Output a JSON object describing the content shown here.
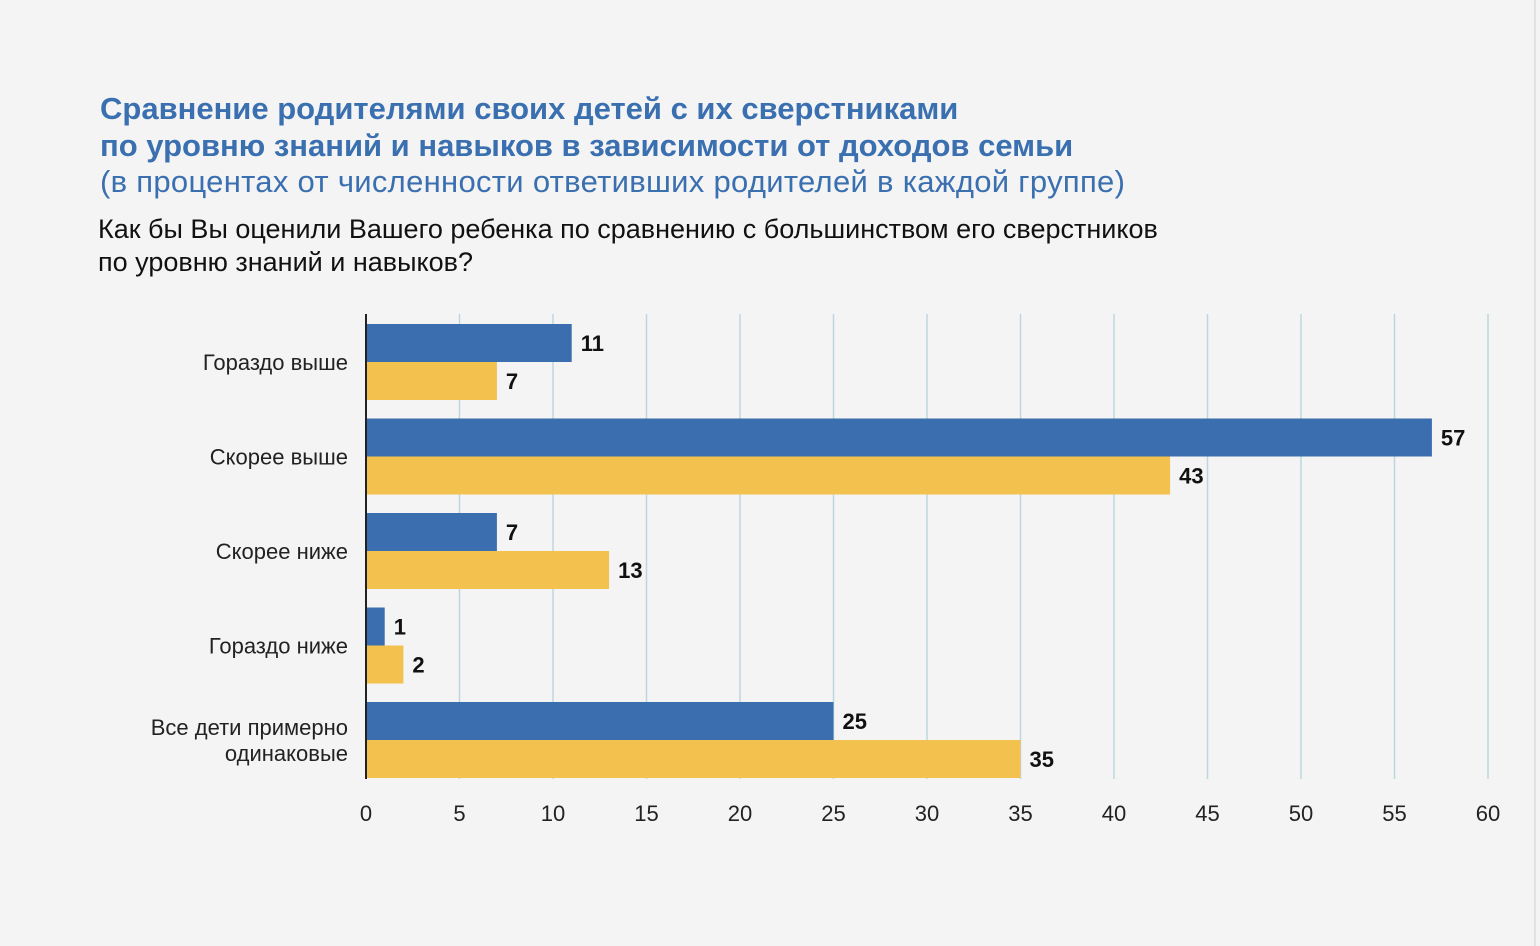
{
  "title_line1": "Сравнение родителями своих детей с их сверстниками",
  "title_line2": "по уровню знаний и навыков в зависимости от доходов семьи",
  "subtitle": "(в процентах от численности ответивших родителей в каждой группе)",
  "question_line1": "Как бы Вы оценили Вашего ребенка по сравнению с большинством его сверстников",
  "question_line2": "по уровню знаний и навыков?",
  "colors": {
    "background": "#f4f4f4",
    "title": "#3a6fb0",
    "series1": "#3b6eae",
    "series2": "#f2c14e",
    "grid": "#bcd6df"
  },
  "chart_data": {
    "type": "bar",
    "orientation": "horizontal",
    "categories": [
      [
        "Гораздо выше"
      ],
      [
        "Скорее выше"
      ],
      [
        "Скорее ниже"
      ],
      [
        "Гораздо ниже"
      ],
      [
        "Все дети примерно",
        "одинаковые"
      ]
    ],
    "series": [
      {
        "values": [
          11,
          57,
          7,
          1,
          25
        ],
        "color": "#3b6eae"
      },
      {
        "values": [
          7,
          43,
          13,
          2,
          35
        ],
        "color": "#f2c14e"
      }
    ],
    "xlim": [
      0,
      60
    ],
    "xticks": [
      0,
      5,
      10,
      15,
      20,
      25,
      30,
      35,
      40,
      45,
      50,
      55,
      60
    ],
    "grid": "vertical",
    "data_labels": true,
    "legend": "none"
  }
}
